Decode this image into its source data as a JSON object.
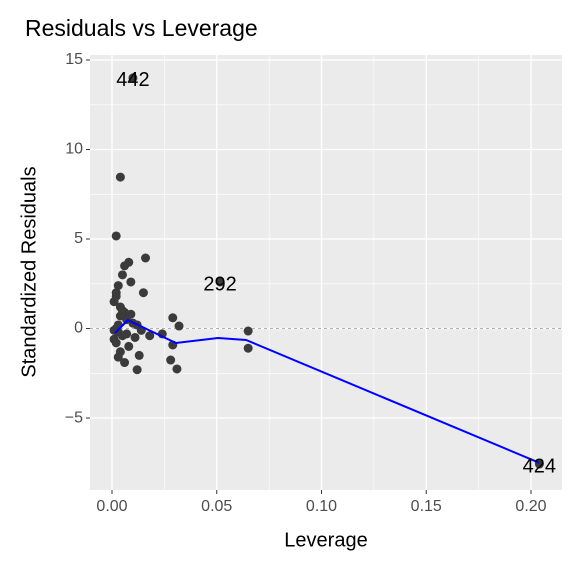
{
  "chart_data": {
    "type": "scatter",
    "title": "Residuals vs Leverage",
    "xlabel": "Leverage",
    "ylabel": "Standardized Residuals",
    "x": [
      0.01,
      0.0516,
      0.204,
      0.004,
      0.002,
      0.065,
      0.065,
      0.029,
      0.032,
      0.031,
      0.028,
      0.029,
      0.016,
      0.015,
      0.013,
      0.012,
      0.006,
      0.008,
      0.005,
      0.009,
      0.003,
      0.002,
      0.001,
      0.004,
      0.006,
      0.007,
      0.01,
      0.012,
      0.002,
      0.003,
      0.005,
      0.001,
      0.002,
      0.008,
      0.011,
      0.004,
      0.003,
      0.006,
      0.007,
      0.014,
      0.018,
      0.024,
      0.002,
      0.004,
      0.009,
      0.001,
      0.003,
      0.005
    ],
    "y": [
      14.0,
      2.6,
      -7.57,
      8.46,
      5.17,
      -0.14,
      -1.1,
      0.6,
      0.14,
      -2.26,
      -1.76,
      -0.92,
      3.94,
      2.0,
      -1.5,
      -2.3,
      3.5,
      3.7,
      3.0,
      2.6,
      2.4,
      2.0,
      1.5,
      1.2,
      0.9,
      0.5,
      0.3,
      0.2,
      0.0,
      -0.2,
      -0.4,
      -0.6,
      -0.8,
      -1.0,
      -0.5,
      -1.3,
      -1.6,
      -1.9,
      -0.3,
      -0.1,
      -0.4,
      -0.3,
      1.8,
      0.7,
      0.8,
      -0.1,
      0.2,
      1.0
    ],
    "labels": [
      "442",
      "292",
      "424",
      null,
      null,
      null,
      null,
      null,
      null,
      null,
      null,
      null,
      null,
      null,
      null,
      null,
      null,
      null,
      null,
      null,
      null,
      null,
      null,
      null,
      null,
      null,
      null,
      null,
      null,
      null,
      null,
      null,
      null,
      null,
      null,
      null,
      null,
      null,
      null,
      null,
      null,
      null,
      null,
      null,
      null,
      null,
      null,
      null
    ],
    "color": "#3b3b3b",
    "smooth": {
      "color": "#0000ff",
      "x": [
        0.0014,
        0.0076,
        0.0305,
        0.0506,
        0.064,
        0.204
      ],
      "y": [
        -0.25,
        0.47,
        -0.81,
        -0.53,
        -0.64,
        -7.5
      ]
    },
    "hline": 0,
    "xlim": [
      -0.0105,
      0.2148
    ],
    "ylim": [
      -9.02,
      15.28
    ],
    "xticks": [
      {
        "value": 0,
        "label": "0.00"
      },
      {
        "value": 0.05,
        "label": "0.05"
      },
      {
        "value": 0.1,
        "label": "0.10"
      },
      {
        "value": 0.15,
        "label": "0.15"
      },
      {
        "value": 0.2,
        "label": "0.20"
      }
    ],
    "yticks": [
      {
        "value": -5,
        "label": "−5"
      },
      0,
      5,
      10,
      15
    ],
    "grid": true
  }
}
